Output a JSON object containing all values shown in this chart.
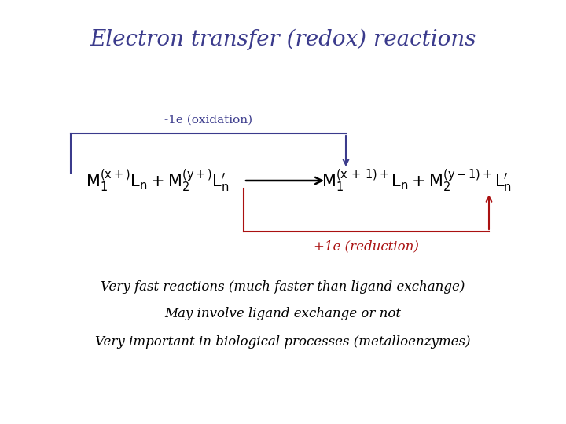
{
  "title": "Electron transfer (redox) reactions",
  "title_color": "#3b3b8c",
  "title_fontsize": 20,
  "title_style": "italic",
  "title_family": "serif",
  "bg_color": "#ffffff",
  "oxidation_label": "-1e (oxidation)",
  "reduction_label": "+1e (reduction)",
  "oxidation_color": "#3b3b8c",
  "reduction_color": "#aa1111",
  "arrow_color": "#000000",
  "eq_fontsize": 15,
  "note1": "Very fast reactions (much faster than ligand exchange)",
  "note2": "May involve ligand exchange or not",
  "note3": "Very important in biological processes (metalloenzymes)",
  "note_fontsize": 12,
  "note_style": "italic",
  "note_family": "serif",
  "note_color": "#000000",
  "ox_label_fontsize": 11,
  "red_label_fontsize": 12
}
